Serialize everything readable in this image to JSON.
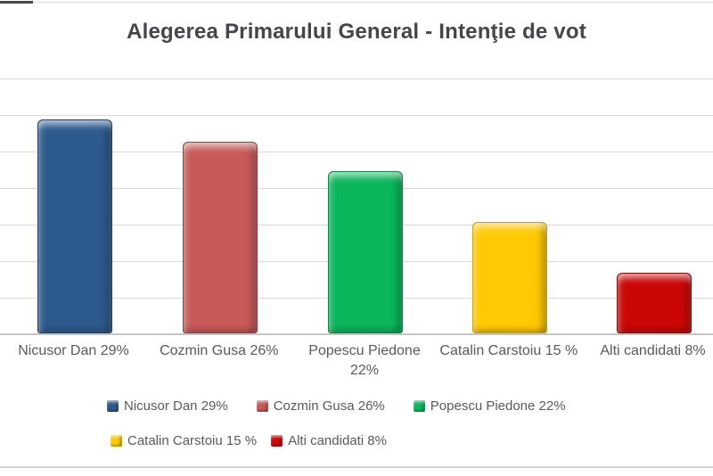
{
  "page": {
    "background": "#ffffff",
    "frame_line_color": "#d9d9d9",
    "top_left_accent_color": "#4a4a4a"
  },
  "title": "Alegerea Primarului General - Intenţie de vot",
  "colors": {
    "title_text": "#45464c",
    "label_text": "#595959",
    "gridline": "#d9d9d9",
    "axis_line": "#c6c6c6"
  },
  "chart_data": {
    "type": "bar",
    "title": "Alegerea Primarului General - Intenţie de vot",
    "categories": [
      "Nicusor Dan 29%",
      "Cozmin Gusa 26%",
      "Popescu Piedone 22%",
      "Catalin Carstoiu 15 %",
      "Alti candidati 8%"
    ],
    "categories_wrapped": [
      [
        "Nicusor Dan 29%"
      ],
      [
        "Cozmin Gusa 26%"
      ],
      [
        "Popescu Piedone",
        "22%"
      ],
      [
        "Catalin Carstoiu 15 %"
      ],
      [
        "Alti candidati 8%"
      ]
    ],
    "values": [
      29,
      26,
      22,
      15,
      8
    ],
    "bar_colors": [
      "#2d5a8d",
      "#c85a58",
      "#0bb65c",
      "#ffc903",
      "#cb0706"
    ],
    "bar_edge_colors": [
      "#1f3f66",
      "#a03b3b",
      "#078a44",
      "#d1a300",
      "#930404"
    ],
    "xlabel": "",
    "ylabel": "",
    "ylim": [
      0,
      35
    ],
    "gridline_interval": 5,
    "grid": true,
    "legend_position": "bottom",
    "y_axis_labels_shown": false
  },
  "legend": {
    "rows": [
      {
        "items": [
          {
            "label": "Nicusor Dan 29%",
            "color": "#2d5a8d"
          },
          {
            "label": "Cozmin Gusa 26%",
            "color": "#c85a58"
          },
          {
            "label": "Popescu Piedone 22%",
            "color": "#0bb65c"
          }
        ]
      },
      {
        "items": [
          {
            "label": "Catalin Carstoiu 15 %",
            "color": "#ffc903"
          },
          {
            "label": "Alti candidati 8%",
            "color": "#cb0706"
          }
        ]
      }
    ]
  }
}
